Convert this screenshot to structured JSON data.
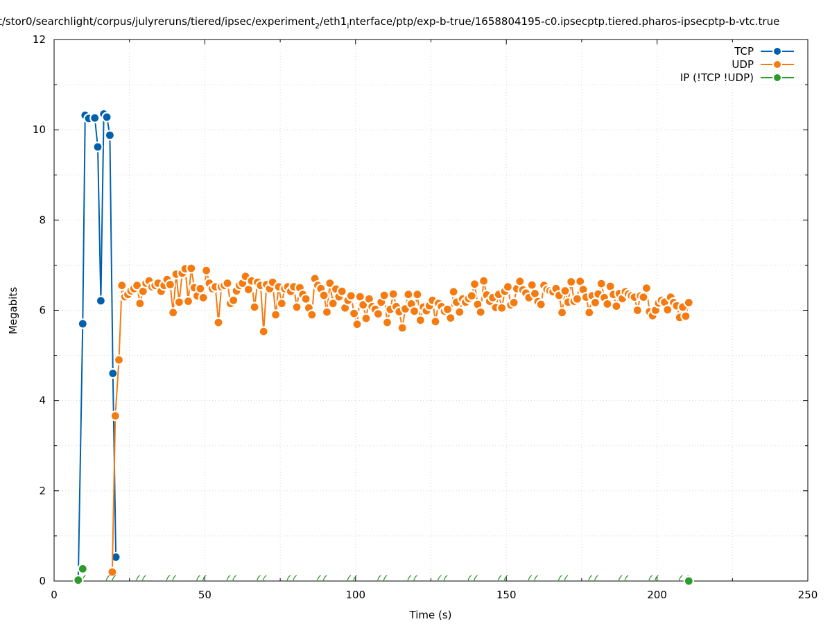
{
  "chart_data": {
    "type": "line",
    "title": "t/stor0/searchlight/corpus/julyreruns/tiered/ipsec/experiment",
    "title_sub1": "2",
    "title_mid": "/eth1",
    "title_sub2": "i",
    "title_end": "nterface/ptp/exp-b-true/1658804195-c0.ipsecptp.tiered.pharos-ipsecptp-b-vtc.true",
    "xlabel": "Time (s)",
    "ylabel": "Megabits",
    "xlim": [
      0,
      250
    ],
    "ylim": [
      0,
      12
    ],
    "x_ticks": [
      "0",
      "50",
      "100",
      "150",
      "200",
      "250"
    ],
    "y_ticks": [
      "0",
      "2",
      "4",
      "6",
      "8",
      "10",
      "12"
    ],
    "grid": true,
    "legend_position": "top-right",
    "series": [
      {
        "name": "TCP",
        "color": "#0060ad",
        "points": [
          [
            8,
            0.02
          ],
          [
            9.5,
            5.7
          ],
          [
            10.3,
            10.32
          ],
          [
            11.5,
            10.25
          ],
          [
            13.5,
            10.26
          ],
          [
            14.5,
            9.62
          ],
          [
            15.5,
            6.21
          ],
          [
            16.5,
            10.35
          ],
          [
            17.5,
            10.28
          ],
          [
            18.5,
            9.88
          ],
          [
            19.5,
            4.6
          ],
          [
            20.5,
            0.53
          ]
        ]
      },
      {
        "name": "UDP",
        "color": "#f57b10",
        "points": [
          [
            19.3,
            0.2
          ],
          [
            20.3,
            3.66
          ],
          [
            21.5,
            4.9
          ],
          [
            22.5,
            6.55
          ],
          [
            23.5,
            6.3
          ],
          [
            24.5,
            6.35
          ],
          [
            25.5,
            6.43
          ],
          [
            26.5,
            6.48
          ],
          [
            27.5,
            6.55
          ],
          [
            28.5,
            6.15
          ],
          [
            29.5,
            6.42
          ],
          [
            30.5,
            6.6
          ],
          [
            31.5,
            6.65
          ],
          [
            32.5,
            6.52
          ],
          [
            33.5,
            6.55
          ],
          [
            34.5,
            6.6
          ],
          [
            35.5,
            6.42
          ],
          [
            36.5,
            6.55
          ],
          [
            37.5,
            6.68
          ],
          [
            38.5,
            6.57
          ],
          [
            39.5,
            5.95
          ],
          [
            40.5,
            6.8
          ],
          [
            41.5,
            6.18
          ],
          [
            42.5,
            6.82
          ],
          [
            43.5,
            6.92
          ],
          [
            44.5,
            6.2
          ],
          [
            45.5,
            6.93
          ],
          [
            46.5,
            6.5
          ],
          [
            47.5,
            6.32
          ],
          [
            48.5,
            6.48
          ],
          [
            49.5,
            6.28
          ],
          [
            50.5,
            6.88
          ],
          [
            51.5,
            6.6
          ],
          [
            52.5,
            6.48
          ],
          [
            53.5,
            6.52
          ],
          [
            54.5,
            5.73
          ],
          [
            55.5,
            6.52
          ],
          [
            56.5,
            6.55
          ],
          [
            57.5,
            6.6
          ],
          [
            58.5,
            6.15
          ],
          [
            59.5,
            6.22
          ],
          [
            60.5,
            6.43
          ],
          [
            61.5,
            6.55
          ],
          [
            62.5,
            6.6
          ],
          [
            63.5,
            6.75
          ],
          [
            64.5,
            6.46
          ],
          [
            65.5,
            6.65
          ],
          [
            66.5,
            6.07
          ],
          [
            67.5,
            6.62
          ],
          [
            68.5,
            6.55
          ],
          [
            69.5,
            5.53
          ],
          [
            70.5,
            6.57
          ],
          [
            71.5,
            6.48
          ],
          [
            72.5,
            6.62
          ],
          [
            73.5,
            5.9
          ],
          [
            74.5,
            6.52
          ],
          [
            75.5,
            6.15
          ],
          [
            76.5,
            6.48
          ],
          [
            77.5,
            6.52
          ],
          [
            78.5,
            6.42
          ],
          [
            79.5,
            6.52
          ],
          [
            80.5,
            6.07
          ],
          [
            81.5,
            6.5
          ],
          [
            82.5,
            6.35
          ],
          [
            83.5,
            6.25
          ],
          [
            84.5,
            6.05
          ],
          [
            85.5,
            5.9
          ],
          [
            86.5,
            6.7
          ],
          [
            87.5,
            6.55
          ],
          [
            88.5,
            6.48
          ],
          [
            89.5,
            6.33
          ],
          [
            90.5,
            5.96
          ],
          [
            91.5,
            6.6
          ],
          [
            92.5,
            6.15
          ],
          [
            93.5,
            6.47
          ],
          [
            94.5,
            6.3
          ],
          [
            95.5,
            6.42
          ],
          [
            96.5,
            6.05
          ],
          [
            97.5,
            6.22
          ],
          [
            98.5,
            6.32
          ],
          [
            99.5,
            5.93
          ],
          [
            100.5,
            5.69
          ],
          [
            101.5,
            6.3
          ],
          [
            102.5,
            6.12
          ],
          [
            103.5,
            5.82
          ],
          [
            104.5,
            6.25
          ],
          [
            105.5,
            6.08
          ],
          [
            106.5,
            6.02
          ],
          [
            107.5,
            5.92
          ],
          [
            108.5,
            6.18
          ],
          [
            109.5,
            6.33
          ],
          [
            110.5,
            5.73
          ],
          [
            111.5,
            6.02
          ],
          [
            112.5,
            6.36
          ],
          [
            113.5,
            6.08
          ],
          [
            114.5,
            5.97
          ],
          [
            115.5,
            5.61
          ],
          [
            116.5,
            6.03
          ],
          [
            117.5,
            6.35
          ],
          [
            118.5,
            6.14
          ],
          [
            119.5,
            5.98
          ],
          [
            120.5,
            6.35
          ],
          [
            121.5,
            5.78
          ],
          [
            122.5,
            6.07
          ],
          [
            123.5,
            5.99
          ],
          [
            124.5,
            6.1
          ],
          [
            125.5,
            6.22
          ],
          [
            126.5,
            5.75
          ],
          [
            127.5,
            6.15
          ],
          [
            128.5,
            6.08
          ],
          [
            129.5,
            5.98
          ],
          [
            130.5,
            6.02
          ],
          [
            131.5,
            5.83
          ],
          [
            132.5,
            6.41
          ],
          [
            133.5,
            6.18
          ],
          [
            134.5,
            5.96
          ],
          [
            135.5,
            6.25
          ],
          [
            136.5,
            6.18
          ],
          [
            137.5,
            6.26
          ],
          [
            138.5,
            6.32
          ],
          [
            139.5,
            6.58
          ],
          [
            140.5,
            6.13
          ],
          [
            141.5,
            5.96
          ],
          [
            142.5,
            6.65
          ],
          [
            143.5,
            6.34
          ],
          [
            144.5,
            6.2
          ],
          [
            145.5,
            6.28
          ],
          [
            146.5,
            6.06
          ],
          [
            147.5,
            6.35
          ],
          [
            148.5,
            6.05
          ],
          [
            149.5,
            6.42
          ],
          [
            150.5,
            6.52
          ],
          [
            151.5,
            6.12
          ],
          [
            152.5,
            6.17
          ],
          [
            153.5,
            6.48
          ],
          [
            154.5,
            6.64
          ],
          [
            155.5,
            6.45
          ],
          [
            156.5,
            6.38
          ],
          [
            157.5,
            6.28
          ],
          [
            158.5,
            6.56
          ],
          [
            159.5,
            6.37
          ],
          [
            160.5,
            6.19
          ],
          [
            161.5,
            6.13
          ],
          [
            162.5,
            6.55
          ],
          [
            163.5,
            6.46
          ],
          [
            164.5,
            6.43
          ],
          [
            165.5,
            6.41
          ],
          [
            166.5,
            6.48
          ],
          [
            167.5,
            6.33
          ],
          [
            168.5,
            5.95
          ],
          [
            169.5,
            6.43
          ],
          [
            170.5,
            6.18
          ],
          [
            171.5,
            6.63
          ],
          [
            172.5,
            6.2
          ],
          [
            173.5,
            6.25
          ],
          [
            174.5,
            6.64
          ],
          [
            175.5,
            6.46
          ],
          [
            176.5,
            6.29
          ],
          [
            177.5,
            5.95
          ],
          [
            178.5,
            6.32
          ],
          [
            179.5,
            6.17
          ],
          [
            180.5,
            6.36
          ],
          [
            181.5,
            6.59
          ],
          [
            182.5,
            6.28
          ],
          [
            183.5,
            6.14
          ],
          [
            184.5,
            6.53
          ],
          [
            185.5,
            6.35
          ],
          [
            186.5,
            6.09
          ],
          [
            187.5,
            6.37
          ],
          [
            188.5,
            6.26
          ],
          [
            189.5,
            6.41
          ],
          [
            190.5,
            6.36
          ],
          [
            191.5,
            6.32
          ],
          [
            192.5,
            6.29
          ],
          [
            193.5,
            6.0
          ],
          [
            194.5,
            6.32
          ],
          [
            195.5,
            6.29
          ],
          [
            196.5,
            6.49
          ],
          [
            197.5,
            5.97
          ],
          [
            198.5,
            5.88
          ],
          [
            199.5,
            6.0
          ],
          [
            200.5,
            6.16
          ],
          [
            201.5,
            6.22
          ],
          [
            202.5,
            6.18
          ],
          [
            203.5,
            6.01
          ],
          [
            204.5,
            6.29
          ],
          [
            205.5,
            6.17
          ],
          [
            206.5,
            6.1
          ],
          [
            207.5,
            5.84
          ],
          [
            208.5,
            6.07
          ],
          [
            209.5,
            5.87
          ],
          [
            210.5,
            6.17
          ]
        ]
      },
      {
        "name": "IP (!TCP  !UDP)",
        "color": "#2b9c2b",
        "points": [
          [
            8,
            0.02
          ],
          [
            9.5,
            0.27
          ],
          [
            210.5,
            0.0
          ]
        ],
        "baseline_x": [
          8,
          10,
          18,
          20,
          28,
          30,
          38,
          40,
          48,
          50,
          58,
          60,
          68,
          70,
          78,
          80,
          88,
          90,
          98,
          100,
          108,
          110,
          118,
          120,
          128,
          130,
          138,
          140,
          148,
          150,
          158,
          160,
          168,
          170,
          178,
          180,
          188,
          190,
          198,
          200,
          208,
          210
        ]
      }
    ]
  }
}
